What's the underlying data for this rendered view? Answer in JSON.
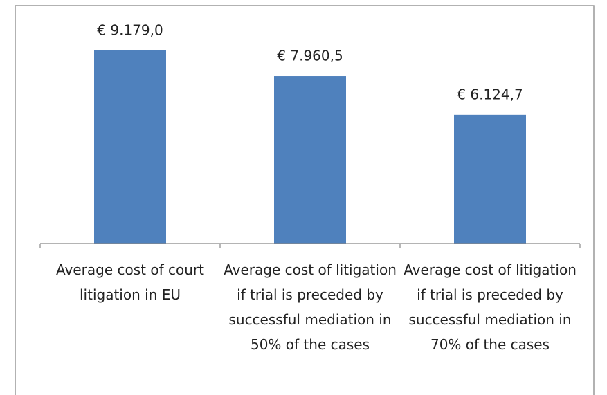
{
  "chart_data": {
    "type": "bar",
    "categories": [
      "Average cost of court litigation in EU",
      "Average cost of litigation if trial is preceded by successful mediation in 50% of the cases",
      "Average cost of litigation if trial is preceded by successful mediation in 70% of the cases"
    ],
    "values": [
      9179.0,
      7960.5,
      6124.7
    ],
    "value_labels": [
      "€ 9.179,0",
      "€ 7.960,5",
      "€ 6.124,7"
    ],
    "color": "#4f81bd"
  }
}
